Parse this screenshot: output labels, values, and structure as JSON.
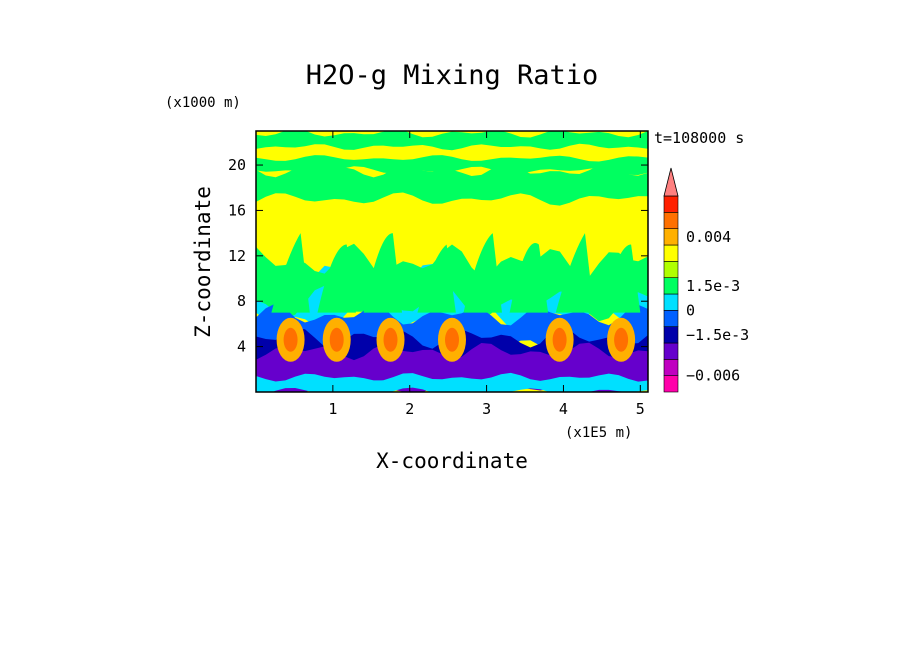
{
  "chart_data": {
    "type": "heatmap",
    "title": "H2O-g Mixing Ratio",
    "subtitle": "t=108000 s",
    "xlabel": "X-coordinate",
    "ylabel": "Z-coordinate",
    "x_units": "(x1E5 m)",
    "y_units": "(x1000 m)",
    "x_ticks": [
      "1",
      "2",
      "3",
      "4",
      "5"
    ],
    "y_ticks": [
      "4",
      "8",
      "12",
      "16",
      "20"
    ],
    "xlim": [
      0,
      5.1
    ],
    "ylim": [
      0,
      23
    ],
    "colorbar": {
      "tick_labels": [
        "0.004",
        "1.5e-3",
        "0",
        "−1.5e-3",
        "−0.006"
      ],
      "tick_levels": [
        9.5,
        6.5,
        5,
        3.5,
        1
      ],
      "colors": [
        "#ff00aa",
        "#c000c0",
        "#6600cc",
        "#0000aa",
        "#0060ff",
        "#00e0ff",
        "#00ff60",
        "#b0ff00",
        "#ffff00",
        "#ffb000",
        "#ff7000",
        "#ff2000",
        "#ff8080"
      ]
    },
    "field_bands": {
      "description_values": "approx z (km) -> dominant color index",
      "layers": [
        {
          "z_range": [
            19,
            23
          ],
          "level": 6
        },
        {
          "z_range": [
            14,
            19
          ],
          "level": 7
        },
        {
          "z_range": [
            10,
            14
          ],
          "level": 7
        },
        {
          "z_range": [
            7,
            10
          ],
          "level": 5
        },
        {
          "z_range": [
            4,
            7
          ],
          "level": 4
        },
        {
          "z_range": [
            0,
            4
          ],
          "level": 2
        }
      ]
    }
  }
}
